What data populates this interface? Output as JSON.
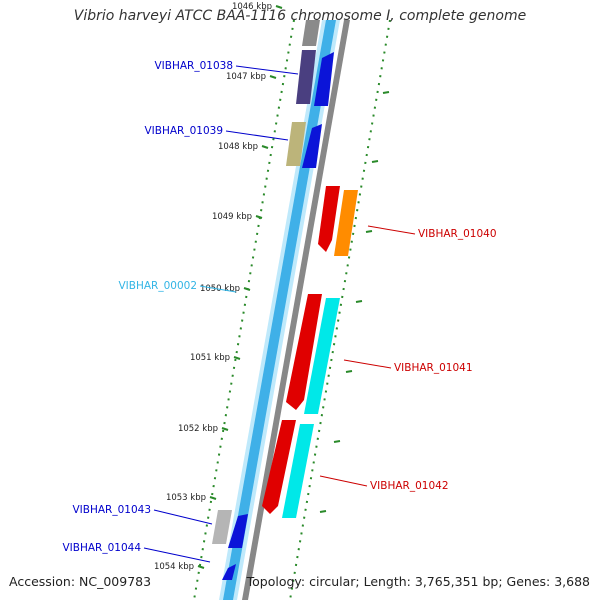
{
  "title": "Vibrio harveyi ATCC BAA-1116 chromosome I, complete genome",
  "accession": "Accession: NC_009783",
  "topology": "Topology: circular; Length: 3,765,351 bp; Genes: 3,688",
  "colors": {
    "backbone_blue": "#3fb0e8",
    "backbone_light": "#bfe9fb",
    "backbone_gray": "#888888",
    "tick_green": "#2a8a2a",
    "label_blue": "#0000cc",
    "label_cyan": "#33b5e5",
    "label_red": "#cc0000"
  },
  "ticks": [
    {
      "label": "1046 kbp"
    },
    {
      "label": "1047 kbp"
    },
    {
      "label": "1048 kbp"
    },
    {
      "label": "1049 kbp"
    },
    {
      "label": "1050 kbp"
    },
    {
      "label": "1051 kbp"
    },
    {
      "label": "1052 kbp"
    },
    {
      "label": "1053 kbp"
    },
    {
      "label": "1054 kbp"
    }
  ],
  "gene_labels": [
    {
      "name": "VIBHAR_01038",
      "color": "#0000cc"
    },
    {
      "name": "VIBHAR_01039",
      "color": "#0000cc"
    },
    {
      "name": "VIBHAR_00002",
      "color": "#33b5e5"
    },
    {
      "name": "VIBHAR_01040",
      "color": "#cc0000"
    },
    {
      "name": "VIBHAR_01041",
      "color": "#cc0000"
    },
    {
      "name": "VIBHAR_01042",
      "color": "#cc0000"
    },
    {
      "name": "VIBHAR_01043",
      "color": "#0000cc"
    },
    {
      "name": "VIBHAR_01044",
      "color": "#0000cc"
    }
  ]
}
